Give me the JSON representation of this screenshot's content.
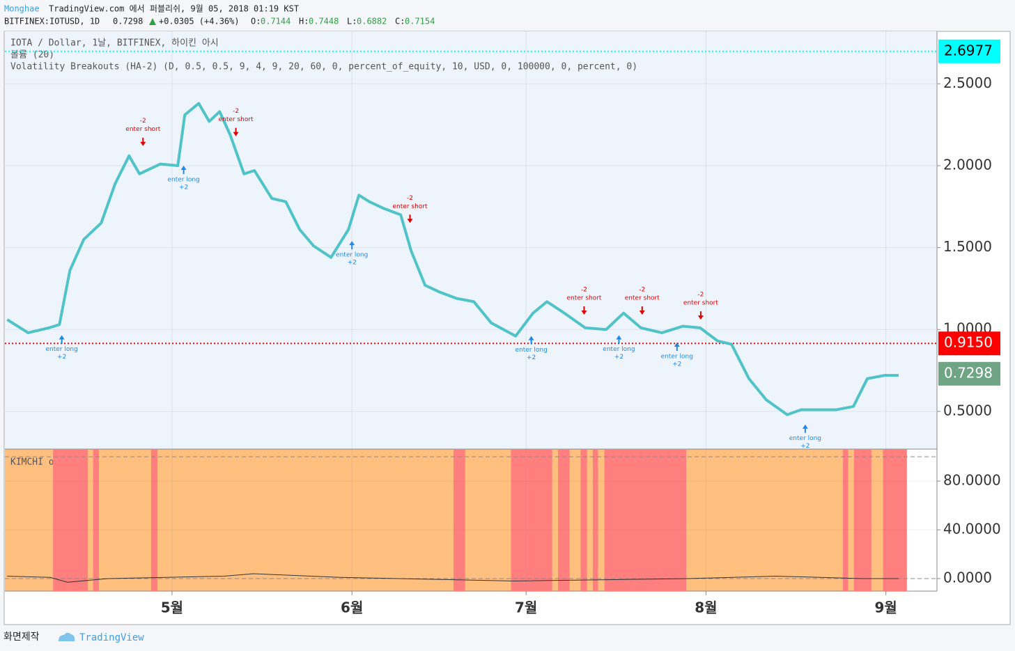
{
  "header": {
    "author": "Monghae",
    "published": "TradingView.com 에서 퍼블리쉬, 9월 05, 2018 01:19 KST",
    "symbol": "BITFINEX:IOTUSD, 1D",
    "last": "0.7298",
    "change": "+0.0305 (+4.36%)",
    "ohlc": [
      {
        "label": "O:",
        "value": "0.7144"
      },
      {
        "label": "H:",
        "value": "0.7448"
      },
      {
        "label": "L:",
        "value": "0.6882"
      },
      {
        "label": "C:",
        "value": "0.7154"
      }
    ]
  },
  "legend": [
    "IOTA / Dollar, 1날, BITFINEX, 하이킨 아시",
    "볼륨 (20)",
    "Volatility Breakouts (HA-2) (D, 0.5, 0.5, 9, 4, 9, 20, 60, 0, percent_of_equity, 10, USD, 0, 100000, 0, percent, 0)"
  ],
  "footer": {
    "caption": "화면제작",
    "brand": "TradingView"
  },
  "chart_data": [
    {
      "type": "line",
      "xlim": [
        92.2,
        252.8
      ],
      "ylim": [
        0.27,
        2.82
      ],
      "yticks": [
        {
          "value": 0.5,
          "label": "0.5000"
        },
        {
          "value": 1,
          "label": "1.0000"
        },
        {
          "value": 1.5,
          "label": "1.5000"
        },
        {
          "value": 2,
          "label": "2.0000"
        },
        {
          "value": 2.5,
          "label": "2.5000"
        }
      ],
      "grid": true,
      "series": [
        {
          "color": "#4fc3c7",
          "x": [
            92.6,
            96.2,
            99.8,
            101.6,
            103.4,
            105.8,
            108.8,
            111.2,
            113.6,
            115.4,
            119.0,
            122.0,
            123.2,
            125.6,
            127.4,
            129.2,
            131.0,
            133.4,
            135.2,
            138.2,
            140.6,
            143.0,
            145.4,
            148.4,
            151.4,
            153.2,
            155.0,
            157.4,
            160.4,
            162.2,
            164.6,
            167.0,
            170.0,
            173.0,
            176.0,
            180.2,
            183.2,
            185.6,
            188.6,
            192.2,
            195.8,
            198.8,
            201.8,
            205.4,
            209.0,
            212.0,
            215.0,
            217.4,
            220.4,
            223.4,
            227.0,
            229.4,
            232.4,
            235.4,
            238.4,
            240.8,
            243.8,
            246.2
          ],
          "values": [
            1.06,
            0.98,
            1.01,
            1.03,
            1.36,
            1.55,
            1.65,
            1.89,
            2.06,
            1.95,
            2.01,
            2.0,
            2.31,
            2.38,
            2.27,
            2.33,
            2.19,
            1.95,
            1.97,
            1.8,
            1.78,
            1.61,
            1.51,
            1.44,
            1.61,
            1.82,
            1.78,
            1.74,
            1.7,
            1.48,
            1.27,
            1.23,
            1.19,
            1.17,
            1.04,
            0.96,
            1.1,
            1.17,
            1.1,
            1.01,
            1.0,
            1.1,
            1.01,
            0.98,
            1.02,
            1.01,
            0.93,
            0.91,
            0.7,
            0.57,
            0.48,
            0.51,
            0.51,
            0.51,
            0.53,
            0.7,
            0.72,
            0.72
          ]
        }
      ],
      "price_labels": [
        {
          "value": 2.6977,
          "label": "2.6977",
          "color": "#00ffff",
          "text_color": "#000000",
          "dotted": true
        },
        {
          "value": 0.915,
          "label": "0.9150",
          "color": "#ff0000",
          "text_color": "#ffffff",
          "dotted": true
        },
        {
          "value": 0.7298,
          "label": "0.7298",
          "color": "#6fa585",
          "text_color": "#ffffff",
          "dotted": false
        }
      ],
      "signals": [
        {
          "side": "long",
          "x": 102.0,
          "y": 0.965,
          "text": "enter long",
          "qty": "+2"
        },
        {
          "side": "long",
          "x": 123.0,
          "y": 2.0,
          "text": "enter long",
          "qty": "+2"
        },
        {
          "side": "long",
          "x": 152.0,
          "y": 1.54,
          "text": "enter long",
          "qty": "+2"
        },
        {
          "side": "long",
          "x": 182.9,
          "y": 0.96,
          "text": "enter long",
          "qty": "+2"
        },
        {
          "side": "long",
          "x": 198.0,
          "y": 0.965,
          "text": "enter long",
          "qty": "+2"
        },
        {
          "side": "long",
          "x": 208.0,
          "y": 0.92,
          "text": "enter long",
          "qty": "+2"
        },
        {
          "side": "long",
          "x": 230.1,
          "y": 0.42,
          "text": "enter long",
          "qty": "+2"
        },
        {
          "side": "short",
          "x": 116.0,
          "y": 2.12,
          "text": "enter short",
          "qty": "-2"
        },
        {
          "side": "short",
          "x": 132.0,
          "y": 2.18,
          "text": "enter short",
          "qty": "-2"
        },
        {
          "side": "short",
          "x": 162.0,
          "y": 1.65,
          "text": "enter short",
          "qty": "-2"
        },
        {
          "side": "short",
          "x": 192.0,
          "y": 1.09,
          "text": "enter short",
          "qty": "-2"
        },
        {
          "side": "short",
          "x": 202.0,
          "y": 1.09,
          "text": "enter short",
          "qty": "-2"
        },
        {
          "side": "short",
          "x": 212.1,
          "y": 1.06,
          "text": "enter short",
          "qty": "-2"
        }
      ]
    },
    {
      "type": "line",
      "title": "KIMCHI of BTC",
      "xlim": [
        92.2,
        252.8
      ],
      "ylim": [
        -10.3,
        106.3
      ],
      "yticks": [
        {
          "value": 0,
          "label": "0.0000"
        },
        {
          "value": 40,
          "label": "40.0000"
        },
        {
          "value": 80,
          "label": "80.0000"
        }
      ],
      "xticks": [
        {
          "value": 121,
          "label": "5월"
        },
        {
          "value": 152,
          "label": "6월"
        },
        {
          "value": 182,
          "label": "7월"
        },
        {
          "value": 213,
          "label": "8월"
        },
        {
          "value": 244,
          "label": "9월"
        }
      ],
      "grid": true,
      "hlines": [
        100,
        0
      ],
      "highlight_color": "#ff7f7f",
      "highlight_spans": [
        [
          100.5,
          106.5
        ],
        [
          107.4,
          108.4
        ],
        [
          117.4,
          118.5
        ],
        [
          169.5,
          171.5
        ],
        [
          179.4,
          186.5
        ],
        [
          187.5,
          189.5
        ],
        [
          191.4,
          192.5
        ],
        [
          193.5,
          194.4
        ],
        [
          195.5,
          209.6
        ],
        [
          236.6,
          237.5
        ],
        [
          238.5,
          241.5
        ],
        [
          243.5,
          247.6
        ]
      ],
      "series": [
        {
          "color": "#333333",
          "x": [
            92.6,
            100,
            103,
            110,
            120,
            130,
            135,
            150,
            170,
            180,
            195,
            210,
            225,
            240,
            246.2
          ],
          "values": [
            2,
            1,
            -3,
            0,
            1,
            2,
            4,
            1,
            -1,
            -2,
            -1,
            0,
            2,
            0,
            0
          ]
        }
      ]
    }
  ]
}
